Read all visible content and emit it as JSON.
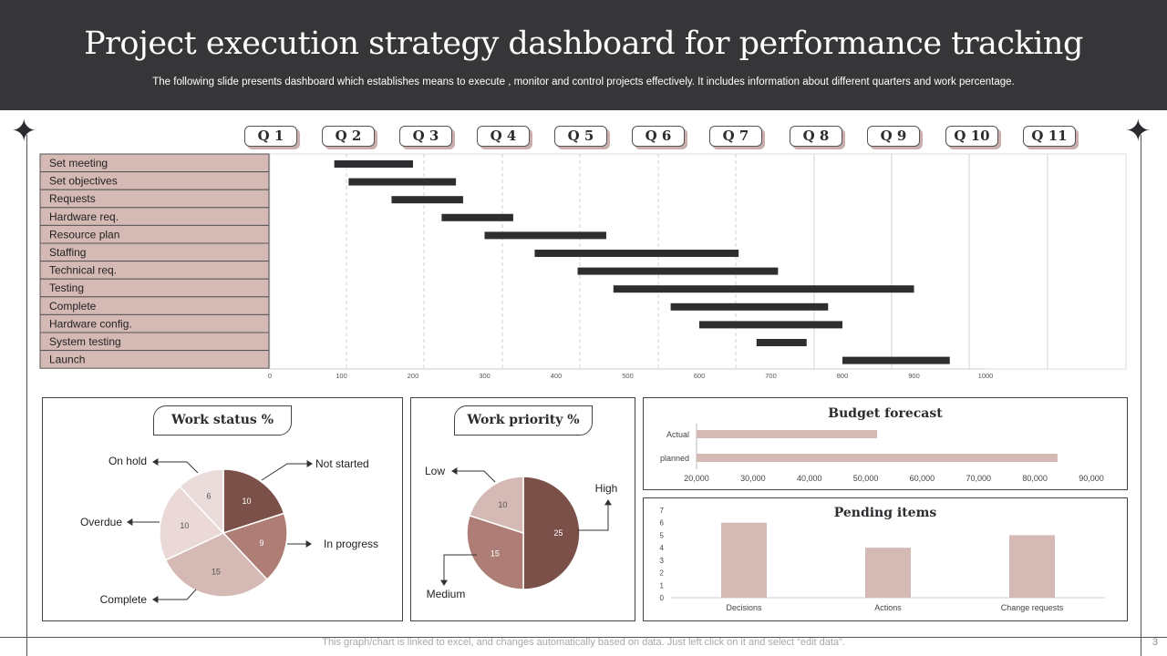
{
  "header": {
    "title": "Project execution strategy dashboard for performance tracking",
    "subtitle": "The following slide presents dashboard which establishes means to execute , monitor and control projects effectively.  It includes information about different quarters and work percentage."
  },
  "quarters": [
    "Q 1",
    "Q 2",
    "Q 3",
    "Q 4",
    "Q 5",
    "Q 6",
    "Q 7",
    "Q 8",
    "Q 9",
    "Q 10",
    "Q 11"
  ],
  "colors": {
    "dark": "#363639",
    "bar": "#2e2e31",
    "rose_light": "#d4b9b5",
    "rose_mid": "#ae7e76",
    "rose_dark": "#7a5049",
    "rose_pale": "#eadcda"
  },
  "chart_data": [
    {
      "type": "bar",
      "orientation": "horizontal-gantt",
      "categories": [
        "Set meeting",
        "Set objectives",
        "Requests",
        "Hardware req.",
        "Resource plan",
        "Staffing",
        "Technical req.",
        "Testing",
        "Complete",
        "Hardware config.",
        "System testing",
        "Launch"
      ],
      "start": [
        90,
        110,
        170,
        240,
        300,
        370,
        430,
        480,
        560,
        600,
        680,
        800
      ],
      "end": [
        200,
        260,
        270,
        340,
        470,
        655,
        710,
        900,
        780,
        800,
        750,
        950
      ],
      "xlim": [
        0,
        1000
      ],
      "xticks": [
        0,
        100,
        200,
        300,
        400,
        500,
        600,
        700,
        800,
        900,
        1000
      ]
    },
    {
      "type": "pie",
      "title": "Work status %",
      "labels": [
        "Not started",
        "In progress",
        "Complete",
        "Overdue",
        "On hold"
      ],
      "values": [
        10,
        9,
        15,
        10,
        6
      ]
    },
    {
      "type": "pie",
      "title": "Work priority %",
      "labels": [
        "High",
        "Medium",
        "Low"
      ],
      "values": [
        25,
        15,
        10
      ]
    },
    {
      "type": "bar",
      "orientation": "horizontal",
      "title": "Budget forecast",
      "categories": [
        "Actual",
        "planned"
      ],
      "values": [
        52000,
        84000
      ],
      "xlim": [
        20000,
        90000
      ],
      "xticks": [
        "20,000",
        "30,000",
        "40,000",
        "50,000",
        "60,000",
        "70,000",
        "80,000",
        "90,000"
      ]
    },
    {
      "type": "bar",
      "title": "Pending items",
      "categories": [
        "Decisions",
        "Actions",
        "Change requests"
      ],
      "values": [
        6,
        4,
        5
      ],
      "ylim": [
        0,
        7
      ],
      "yticks": [
        0,
        1,
        2,
        3,
        4,
        5,
        6,
        7
      ]
    }
  ],
  "footer": {
    "note": "This graph/chart is linked to excel,  and changes automatically based on data. Just left click on it and select “edit data”.",
    "page": "3"
  }
}
